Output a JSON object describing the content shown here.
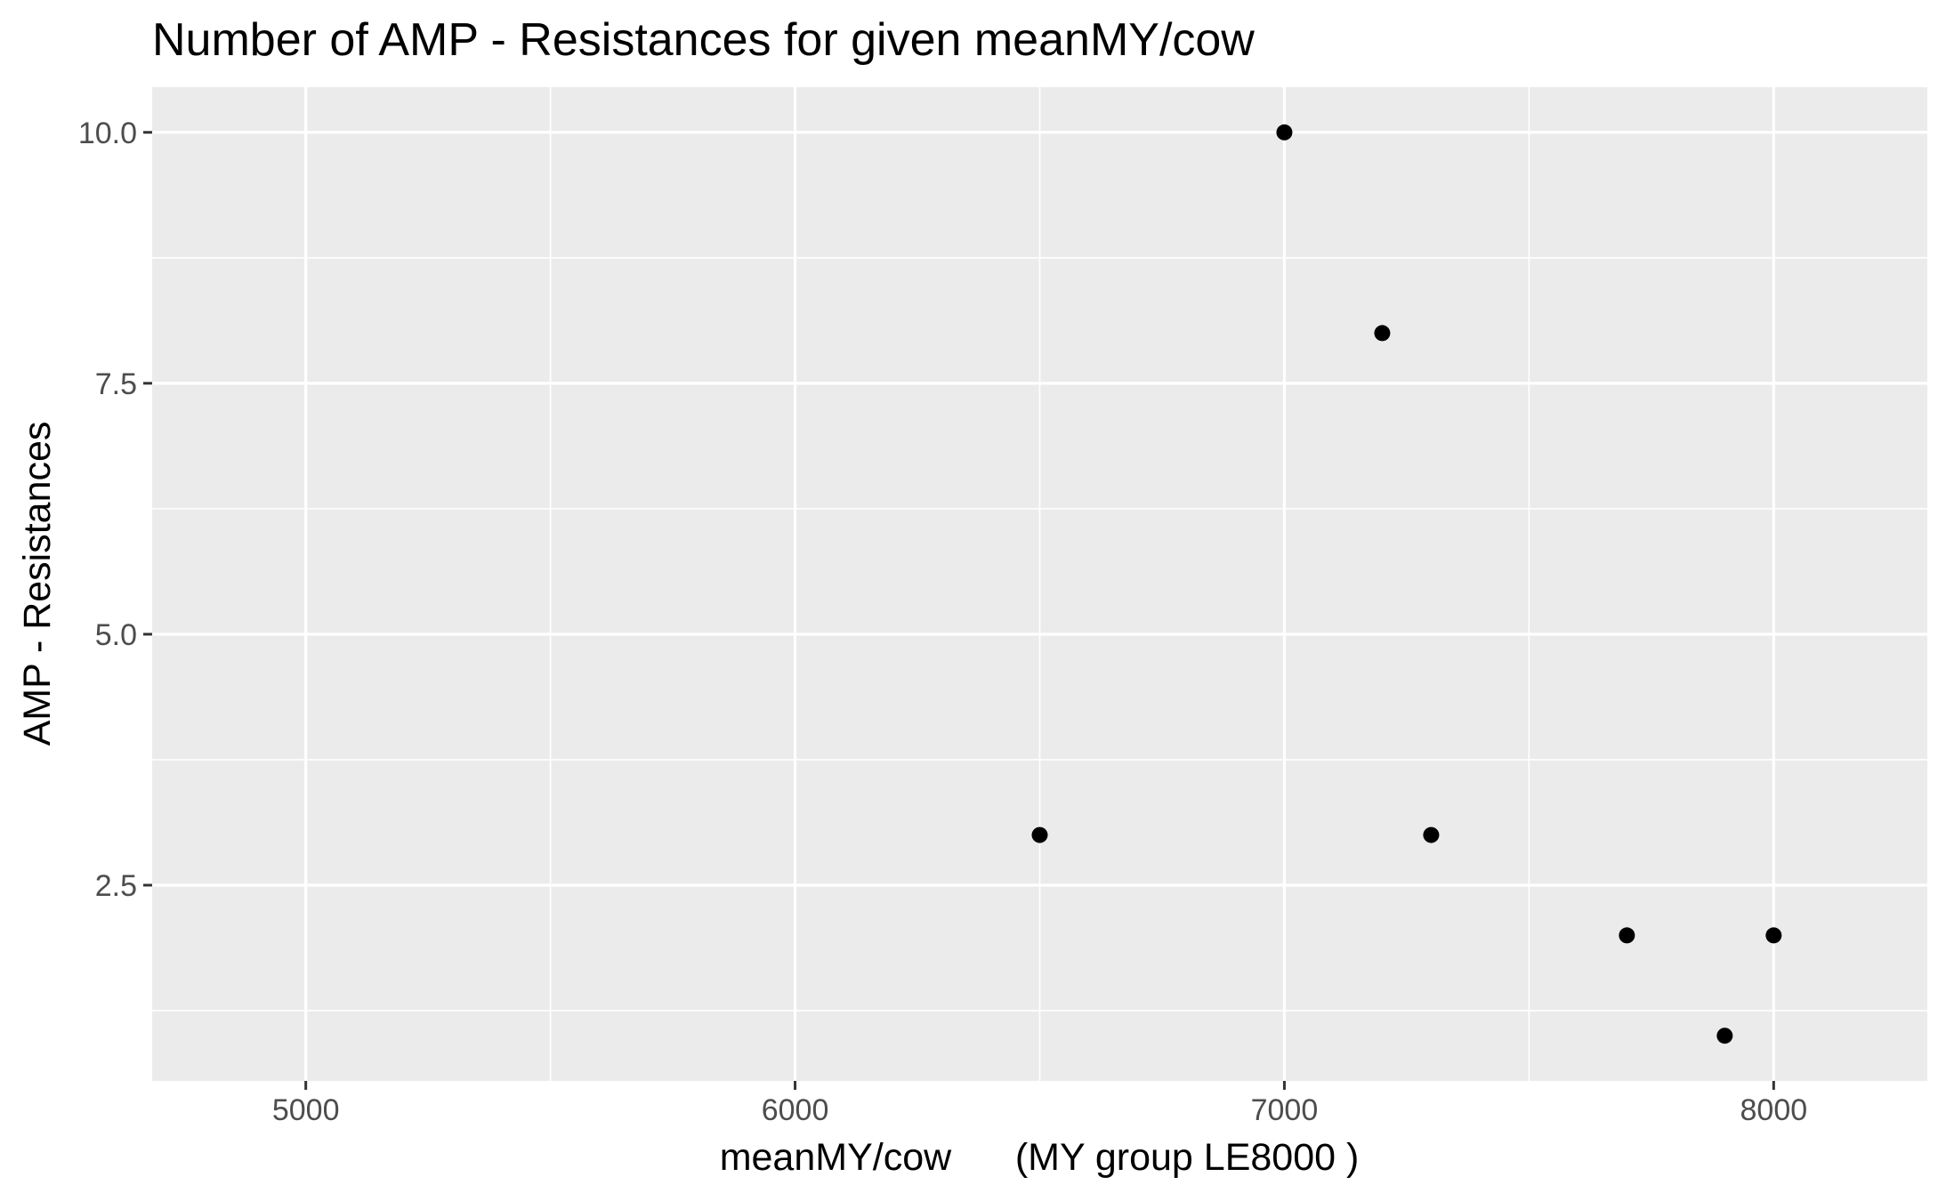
{
  "chart_data": {
    "type": "scatter",
    "title": "Number of AMP - Resistances for given meanMY/cow",
    "xlabel": "meanMY/cow      (MY group LE8000 )",
    "ylabel": "AMP - Resistances",
    "xlim": [
      4686,
      8314
    ],
    "ylim": [
      0.55,
      10.45
    ],
    "x_ticks": [
      5000,
      6000,
      7000,
      8000
    ],
    "x_tick_labels": [
      "5000",
      "6000",
      "7000",
      "8000"
    ],
    "y_ticks": [
      2.5,
      5.0,
      7.5,
      10.0
    ],
    "y_tick_labels": [
      "2.5",
      "5.0",
      "7.5",
      "10.0"
    ],
    "x_minor_breaks": [
      5500,
      6500,
      7500
    ],
    "y_minor_breaks": [
      1.25,
      3.75,
      6.25,
      8.75
    ],
    "grid": true,
    "legend": "none",
    "colors": {
      "panel_background": "#ebebeb",
      "grid_line": "#ffffff",
      "point": "#000000",
      "tick_mark": "#333333",
      "tick_label": "#4d4d4d"
    },
    "points": [
      {
        "x": 6500,
        "y": 3
      },
      {
        "x": 7000,
        "y": 10
      },
      {
        "x": 7200,
        "y": 8
      },
      {
        "x": 7300,
        "y": 3
      },
      {
        "x": 7700,
        "y": 2
      },
      {
        "x": 7900,
        "y": 1
      },
      {
        "x": 8000,
        "y": 2
      }
    ]
  }
}
